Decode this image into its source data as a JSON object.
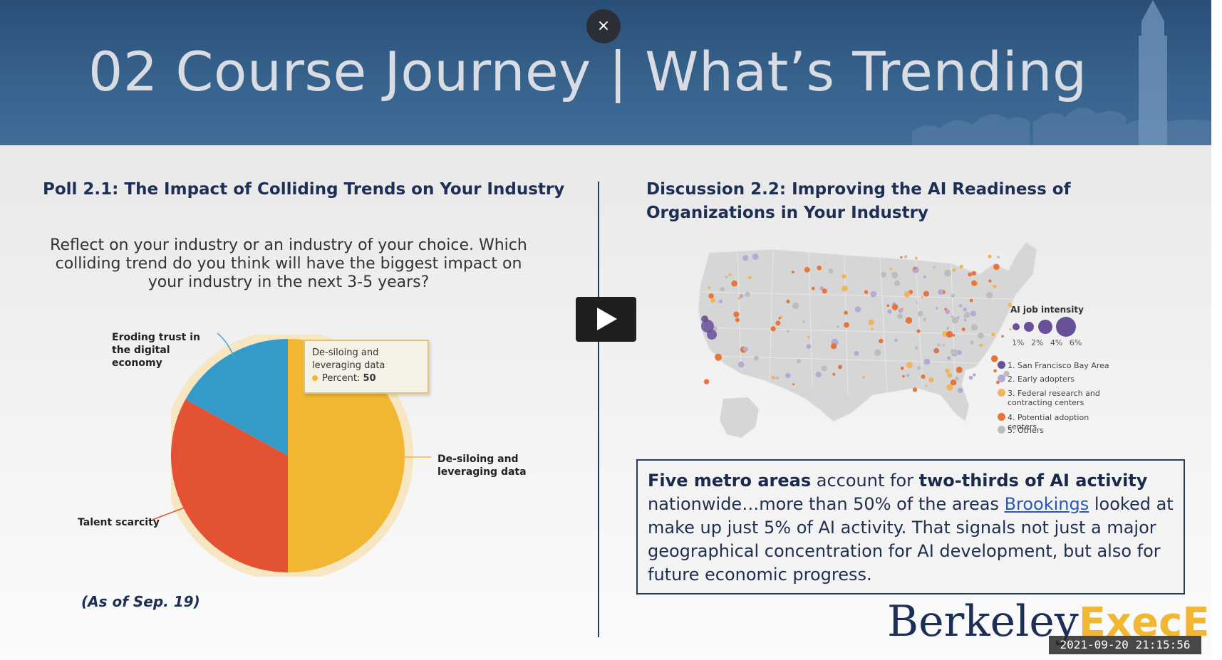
{
  "header": {
    "title": "02 Course Journey | What’s Trending",
    "close_label": "×"
  },
  "left": {
    "section_title": "Poll 2.1: The Impact of Colliding Trends on Your Industry",
    "question": "Reflect on your industry or an industry of your choice. Which colliding trend do you think will have the biggest impact on your industry in the next 3-5 years?",
    "note": "(As of Sep. 19)"
  },
  "chart_data": {
    "type": "pie",
    "categories": [
      "De-siloing and leveraging data",
      "Talent scarcity",
      "Eroding trust in the digital economy"
    ],
    "values": [
      50,
      33,
      17
    ],
    "colors": [
      "#f1b733",
      "#e35233",
      "#349bc9"
    ],
    "tooltip": {
      "category": "De-siloing and leveraging data",
      "metric": "Percent:",
      "value": "50"
    }
  },
  "labels": {
    "eroding": "Eroding trust in the digital economy",
    "talent": "Talent scarcity",
    "desiloing": "De-siloing and leveraging data"
  },
  "right": {
    "section_title_line1": "Discussion 2.2: Improving the AI Readiness of",
    "section_title_line2": "Organizations in Your Industry",
    "legend": {
      "title": "AI job intensity",
      "sizes": [
        "1%",
        "2%",
        "4%",
        "6%"
      ],
      "items": [
        {
          "label": "1. San Francisco Bay Area",
          "color": "#6a4f99"
        },
        {
          "label": "2. Early adopters",
          "color": "#b6a9d4"
        },
        {
          "label": "3. Federal research and contracting centers",
          "color": "#f0b35e"
        },
        {
          "label": "4. Potential adoption centers",
          "color": "#e5753a"
        },
        {
          "label": "5. Others",
          "color": "#bdbdbd"
        }
      ]
    },
    "quote": {
      "b1": "Five metro areas",
      "t1": " account for ",
      "b2": "two-thirds of AI activity",
      "t2": " nationwide…more than 50% of the areas ",
      "link": "Brookings",
      "t3": " looked at make up just 5% of AI activity. That signals not just a major geographical concentration for AI development, but also for future economic progress."
    }
  },
  "logo": {
    "part1": "Berkeley",
    "part2": "ExecEd"
  },
  "timestamp": "2021-09-20 21:15:56"
}
